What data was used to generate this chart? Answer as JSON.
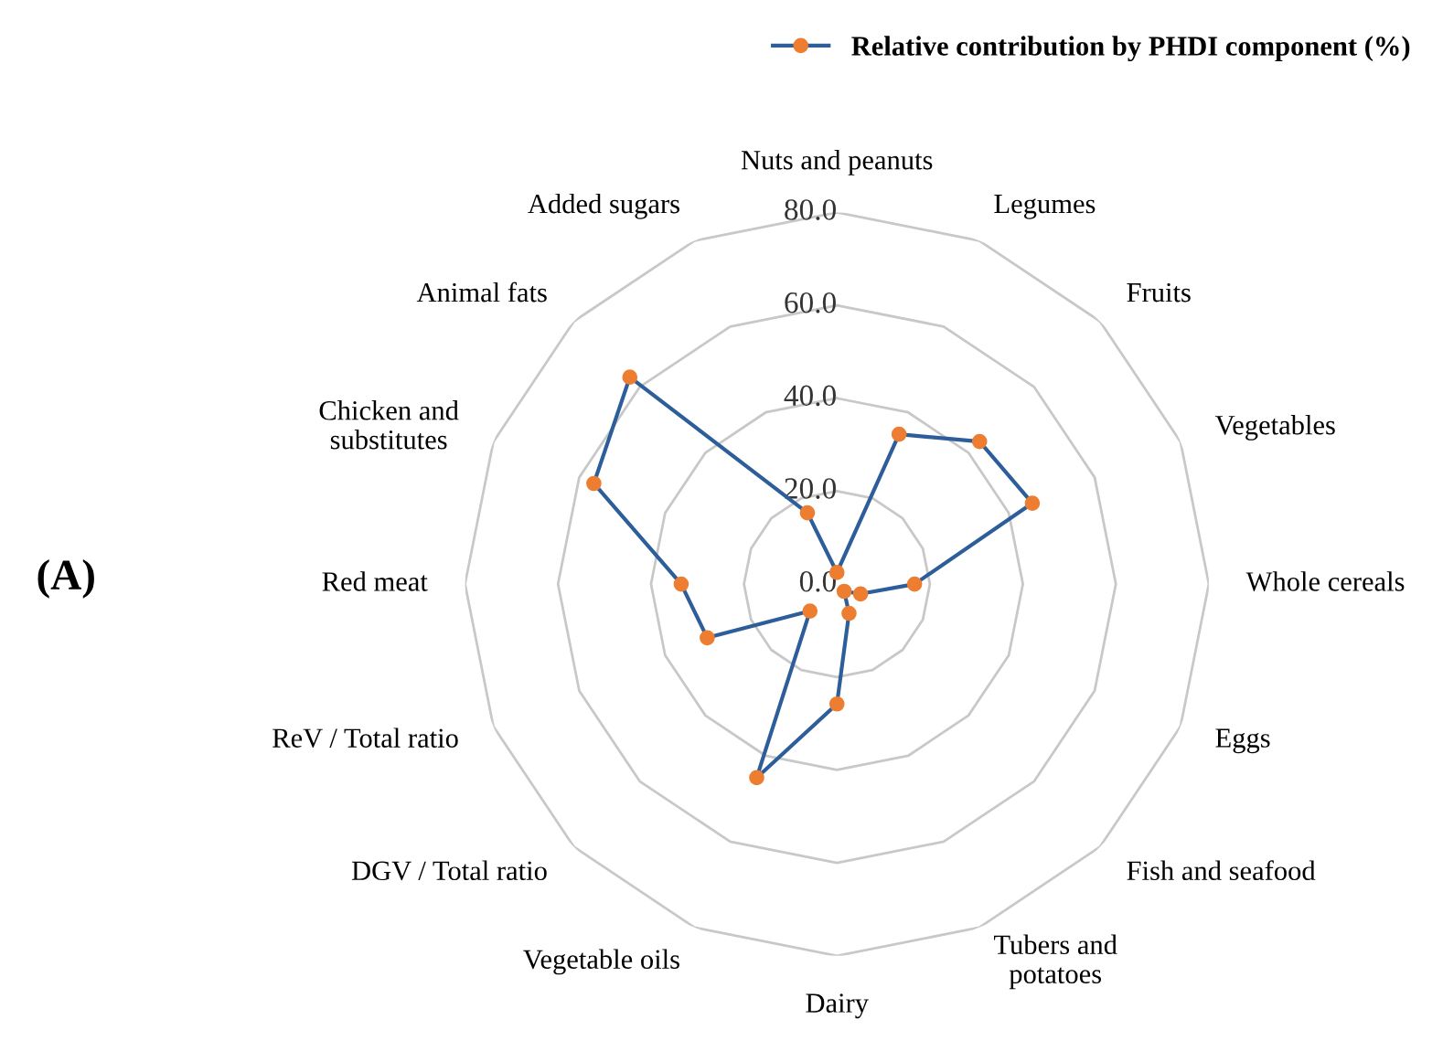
{
  "chart_data": {
    "type": "radar",
    "categories": [
      "Nuts and peanuts",
      "Legumes",
      "Fruits",
      "Vegetables",
      "Whole cereals",
      "Eggs",
      "Fish and seafood",
      "Tubers and\npotatoes",
      "Dairy",
      "Vegetable oils",
      "DGV / Total ratio",
      "ReV / Total ratio",
      "Red meat",
      "Chicken and\nsubstitutes",
      "Animal fats",
      "Added sugars"
    ],
    "series": [
      {
        "name": "Relative contribution by PHDI component (%)",
        "color": "#2e5e9a",
        "colors": [
          "#ed7d31",
          "#ed7d31",
          "#ed7d31",
          "#ed7d31",
          "#ed7d31",
          "#ed7d31",
          "#ed7d31",
          "#ed7d31",
          "#ed7d31",
          "#ed7d31",
          "#ed7d31",
          "#ed7d31",
          "#ed7d31",
          "#ed7d31",
          "#ed7d31",
          "#ed7d31"
        ],
        "values": [
          2.5,
          34.9,
          43.4,
          45.5,
          16.7,
          5.5,
          2.2,
          6.8,
          25.8,
          45.1,
          8.2,
          30.2,
          33.5,
          56.6,
          63.0,
          16.6
        ]
      }
    ],
    "ylim": [
      0,
      80
    ],
    "yticks": [
      {
        "value": 0,
        "label": "0.0"
      },
      {
        "value": 20,
        "label": "20.0"
      },
      {
        "value": 40,
        "label": "40.0"
      },
      {
        "value": 60,
        "label": "60.0"
      },
      {
        "value": 80,
        "label": "80.0"
      }
    ],
    "marker": "circle",
    "legend": "top right",
    "grid": true,
    "annotations": [
      "(A)"
    ]
  }
}
